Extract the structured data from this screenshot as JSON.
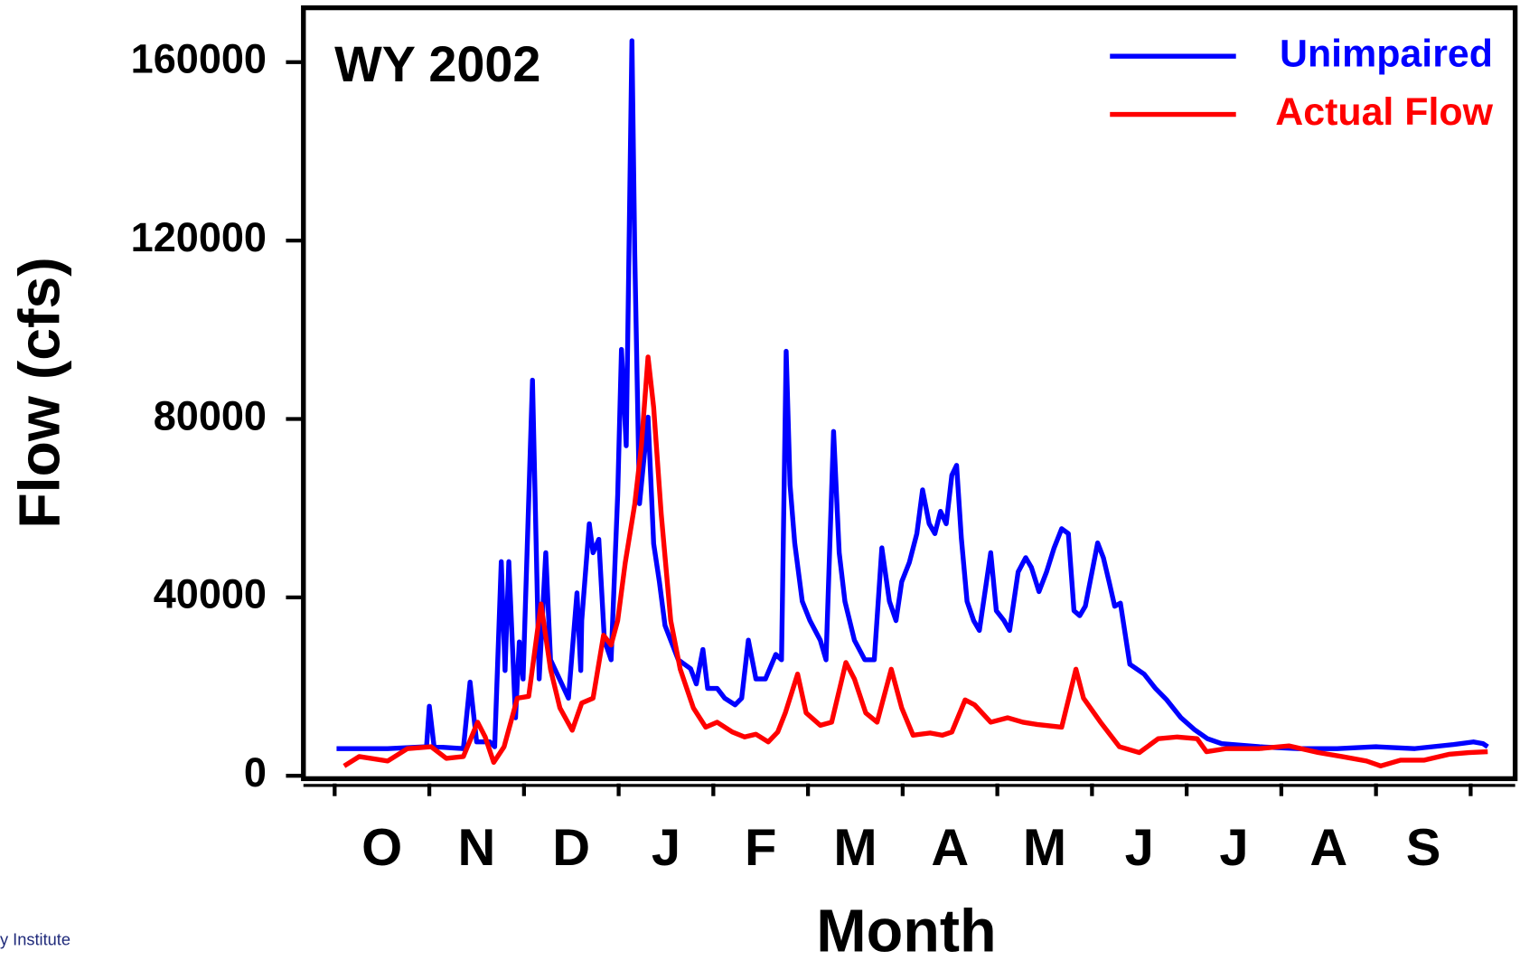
{
  "chart_data": {
    "type": "line",
    "annotation": "WY 2002",
    "y_label": "Flow (cfs)",
    "x_label": "Month",
    "footer": "y Institute",
    "month_labels": [
      "O",
      "N",
      "D",
      "J",
      "F",
      "M",
      "A",
      "M",
      "J",
      "J",
      "A",
      "S"
    ],
    "xlim": [
      -0.33,
      12.47
    ],
    "xticks": [
      0,
      1,
      2,
      3,
      4,
      5,
      6,
      7,
      8,
      9,
      10,
      11,
      12
    ],
    "ylim": [
      -650,
      172200
    ],
    "yticks": [
      0,
      40000,
      80000,
      120000,
      160000
    ],
    "legend": "upper right",
    "series": [
      {
        "name": "Unimpaired",
        "color": "#0000ff",
        "x": [
          0.02,
          0.56,
          0.97,
          1.0,
          1.05,
          1.36,
          1.43,
          1.5,
          1.64,
          1.69,
          1.76,
          1.8,
          1.84,
          1.91,
          1.95,
          1.99,
          2.09,
          2.16,
          2.23,
          2.28,
          2.47,
          2.56,
          2.6,
          2.61,
          2.69,
          2.73,
          2.79,
          2.85,
          2.92,
          2.99,
          3.03,
          3.08,
          3.14,
          3.17,
          3.22,
          3.31,
          3.37,
          3.43,
          3.49,
          3.63,
          3.76,
          3.82,
          3.89,
          3.94,
          4.04,
          4.12,
          4.23,
          4.3,
          4.37,
          4.45,
          4.55,
          4.66,
          4.72,
          4.77,
          4.81,
          4.86,
          4.94,
          5.02,
          5.13,
          5.19,
          5.27,
          5.33,
          5.39,
          5.49,
          5.6,
          5.7,
          5.78,
          5.86,
          5.93,
          5.99,
          6.07,
          6.15,
          6.21,
          6.28,
          6.34,
          6.4,
          6.46,
          6.52,
          6.57,
          6.62,
          6.68,
          6.75,
          6.81,
          6.93,
          6.99,
          7.07,
          7.13,
          7.22,
          7.3,
          7.36,
          7.44,
          7.52,
          7.6,
          7.68,
          7.75,
          7.81,
          7.87,
          7.93,
          7.99,
          8.06,
          8.12,
          8.18,
          8.24,
          8.3,
          8.4,
          8.55,
          8.67,
          8.79,
          8.94,
          9.08,
          9.22,
          9.37,
          9.77,
          10.18,
          10.59,
          11.0,
          11.41,
          11.82,
          12.03,
          12.13,
          12.18
        ],
        "values": [
          6100,
          6100,
          6500,
          15600,
          6500,
          6100,
          21000,
          7600,
          7600,
          6500,
          48000,
          23600,
          48000,
          13000,
          30000,
          21700,
          88700,
          21700,
          50000,
          26000,
          17400,
          41000,
          23600,
          34800,
          56500,
          50000,
          53000,
          30400,
          26000,
          63000,
          95600,
          74000,
          164800,
          117000,
          61000,
          80400,
          52000,
          43500,
          33700,
          26000,
          24000,
          20600,
          28300,
          19600,
          19600,
          17400,
          15900,
          17400,
          30400,
          21700,
          21700,
          27200,
          26000,
          95200,
          65200,
          52200,
          39100,
          34800,
          30400,
          26000,
          77200,
          50000,
          39100,
          30400,
          26000,
          26000,
          51100,
          39100,
          34800,
          43500,
          47800,
          54300,
          64100,
          56500,
          54300,
          59300,
          56500,
          67400,
          69600,
          53300,
          39100,
          34800,
          32600,
          50000,
          37000,
          34800,
          32600,
          45700,
          48900,
          46700,
          41300,
          45700,
          51100,
          55400,
          54300,
          37000,
          35900,
          38000,
          44600,
          52200,
          48900,
          43500,
          38000,
          38700,
          25000,
          22800,
          19600,
          17000,
          13000,
          10400,
          8300,
          7200,
          6500,
          6100,
          6100,
          6500,
          6100,
          7000,
          7600,
          7200,
          6500
        ]
      },
      {
        "name": "Actual Flow",
        "color": "#ff0000",
        "x": [
          0.1,
          0.26,
          0.56,
          0.77,
          1.02,
          1.18,
          1.36,
          1.51,
          1.59,
          1.68,
          1.79,
          1.93,
          2.05,
          2.18,
          2.28,
          2.38,
          2.51,
          2.61,
          2.73,
          2.84,
          2.92,
          2.99,
          3.07,
          3.17,
          3.24,
          3.31,
          3.37,
          3.45,
          3.55,
          3.65,
          3.79,
          3.92,
          4.04,
          4.2,
          4.33,
          4.45,
          4.58,
          4.68,
          4.76,
          4.89,
          4.98,
          5.13,
          5.25,
          5.4,
          5.49,
          5.61,
          5.73,
          5.88,
          5.99,
          6.11,
          6.29,
          6.42,
          6.52,
          6.66,
          6.76,
          6.93,
          7.11,
          7.27,
          7.42,
          7.68,
          7.83,
          7.91,
          8.09,
          8.29,
          8.5,
          8.7,
          8.9,
          9.11,
          9.21,
          9.42,
          9.77,
          10.08,
          10.39,
          10.64,
          10.9,
          11.05,
          11.26,
          11.51,
          11.77,
          11.98,
          12.18
        ],
        "values": [
          2200,
          4300,
          3300,
          6100,
          6500,
          3900,
          4300,
          12000,
          8700,
          3000,
          6500,
          17400,
          17800,
          38500,
          23900,
          15200,
          10200,
          16300,
          17400,
          31500,
          29300,
          34800,
          47800,
          60900,
          73900,
          93900,
          82600,
          58700,
          34800,
          23900,
          15200,
          10900,
          12000,
          9800,
          8700,
          9300,
          7600,
          9800,
          14100,
          22800,
          14100,
          11300,
          12000,
          25400,
          21700,
          14100,
          12000,
          23900,
          15200,
          9100,
          9600,
          9100,
          9800,
          17000,
          15900,
          12000,
          13000,
          12000,
          11500,
          10900,
          23900,
          17400,
          12000,
          6500,
          5200,
          8300,
          8700,
          8300,
          5400,
          6100,
          6100,
          6700,
          5200,
          4300,
          3300,
          2200,
          3500,
          3500,
          4800,
          5200,
          5400
        ]
      }
    ]
  }
}
